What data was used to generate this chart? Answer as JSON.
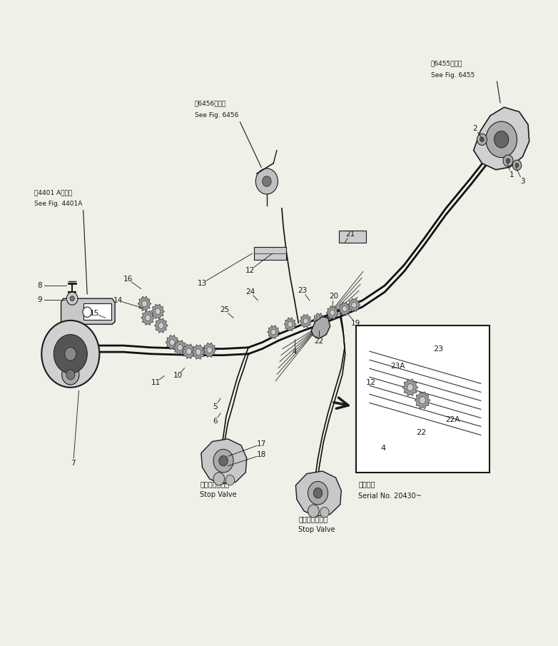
{
  "bg_color": "#f0efe8",
  "line_color": "#1a1a1a",
  "labels": {
    "fig6455_jp": "第6455図参照",
    "fig6455_en": "See Fig. 6455",
    "fig6456_jp": "第6456図参照",
    "fig6456_en": "See Fig. 6456",
    "fig4401a_jp": "第4401 A図参照",
    "fig4401a_en": "See Fig. 4401A",
    "stop_valve_jp": "ストップバルブ",
    "stop_valve_en": "Stop Valve",
    "serial_jp": "適用号機",
    "serial_en": "Serial No. 20430~"
  }
}
